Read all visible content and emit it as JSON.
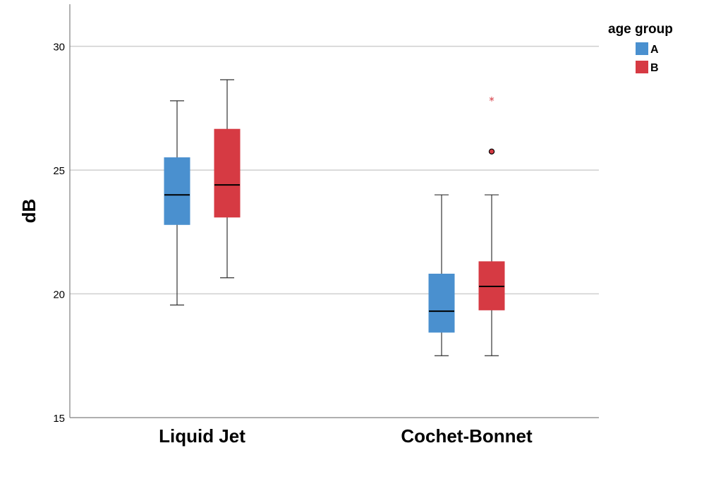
{
  "chart_data": {
    "type": "box",
    "ylabel": "dB",
    "ylim": [
      15,
      31.7
    ],
    "yticks": [
      15,
      20,
      25,
      30
    ],
    "grid": true,
    "legend": {
      "title": "age group",
      "placement": "top-right"
    },
    "categories": [
      "Liquid Jet",
      "Cochet-Bonnet"
    ],
    "series": [
      {
        "name": "A",
        "color": "#4a90cf",
        "boxes": [
          {
            "whisker_low": 19.55,
            "q1": 22.8,
            "median": 24.0,
            "q3": 25.5,
            "whisker_high": 27.8,
            "outliers": []
          },
          {
            "whisker_low": 17.5,
            "q1": 18.45,
            "median": 19.3,
            "q3": 20.8,
            "whisker_high": 24.0,
            "outliers": []
          }
        ]
      },
      {
        "name": "B",
        "color": "#d63a43",
        "boxes": [
          {
            "whisker_low": 20.65,
            "q1": 23.1,
            "median": 24.4,
            "q3": 26.65,
            "whisker_high": 28.65,
            "outliers": []
          },
          {
            "whisker_low": 17.5,
            "q1": 19.35,
            "median": 20.3,
            "q3": 21.3,
            "whisker_high": 24.0,
            "outliers": [
              {
                "value": 25.75,
                "marker": "circle"
              },
              {
                "value": 27.85,
                "marker": "star"
              }
            ]
          }
        ]
      }
    ]
  }
}
